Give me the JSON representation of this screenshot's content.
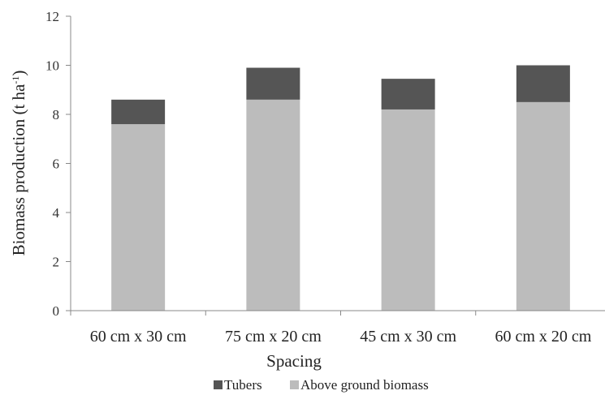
{
  "chart_data": {
    "type": "bar",
    "stacked": true,
    "categories": [
      "60 cm x 30 cm",
      "75 cm x 20 cm",
      "45 cm x 30 cm",
      "60 cm x 20 cm"
    ],
    "series": [
      {
        "name": "Above ground biomass",
        "values": [
          7.6,
          8.6,
          8.2,
          8.5
        ],
        "color": "#bcbcbc"
      },
      {
        "name": "Tubers",
        "values": [
          1.0,
          1.3,
          1.25,
          1.5
        ],
        "color": "#555555"
      }
    ],
    "yticks": [
      "0",
      "2",
      "4",
      "6",
      "8",
      "10",
      "12"
    ],
    "ylim": [
      0,
      12
    ],
    "xlabel": "Spacing",
    "ylabel": "Biomass production (t ha",
    "ylabel_superscript": "-1",
    "ylabel_suffix": ")",
    "legend": {
      "position": "bottom",
      "items": [
        {
          "label": "Tubers",
          "color": "#555555"
        },
        {
          "label": "Above ground biomass",
          "color": "#bcbcbc"
        }
      ]
    },
    "grid": false
  }
}
